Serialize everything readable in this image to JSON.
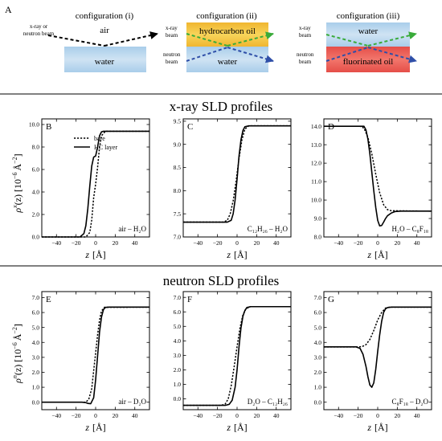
{
  "figure_label": "A",
  "configurations": [
    {
      "title": "configuration (i)",
      "top_label": "air",
      "bottom_label": "water",
      "beam_labels": [
        "x-ray or",
        "neutron beam"
      ]
    },
    {
      "title": "configuration (ii)",
      "top_label": "hydrocarbon oil",
      "bottom_label": "water",
      "beam_labels": [
        "x-ray",
        "beam",
        "neutron",
        "beam"
      ]
    },
    {
      "title": "configuration (iii)",
      "top_label": "water",
      "bottom_label": "fluorinated oil",
      "beam_labels": [
        "x-ray",
        "beam",
        "neutron",
        "beam"
      ]
    }
  ],
  "sections": {
    "xray": "x-ray SLD profiles",
    "neutron": "neutron SLD profiles"
  },
  "axis_text": {
    "xlabel_z": "z",
    "xlabel_unit": "[Å]",
    "ylabel_x_rho": "ρ",
    "ylabel_x_sup": "x",
    "ylabel_n_rho": "ρ",
    "ylabel_n_sup": "n",
    "ylabel_rest": "(z) [10",
    "ylabel_exp": "−6",
    "ylabel_unit": "Å",
    "ylabel_unit_exp": "−2",
    "ylabel_close": "]"
  },
  "legend": [
    "bare",
    "HC layer"
  ],
  "colors": {
    "water": "#a9cdea",
    "hydrocarbon_oil": "#f0b630",
    "fluorinated_oil": "#e54e48",
    "xray_beam": "#3aab3a",
    "neutron_beam": "#2f4fa8",
    "config_i_beam": "#000000"
  },
  "chart_data": [
    {
      "id": "B",
      "type": "line",
      "section": "xray",
      "annotation": "air – H₂O",
      "xlim": [
        -55,
        55
      ],
      "xticks": [
        -40,
        -20,
        0,
        20,
        40
      ],
      "ylim": [
        0,
        10.5
      ],
      "yticks": [
        0.0,
        2.0,
        4.0,
        6.0,
        8.0,
        10.0
      ],
      "ytick_labels": [
        "0.0",
        "2.0",
        "4.0",
        "6.0",
        "8.0",
        "10.0"
      ],
      "series": [
        {
          "name": "bare",
          "x": [
            -55,
            -10,
            -6,
            -4,
            -2,
            0,
            2,
            4,
            6,
            10,
            55
          ],
          "y": [
            0.0,
            0.0,
            0.4,
            1.5,
            3.5,
            4.7,
            6.2,
            8.0,
            9.0,
            9.4,
            9.4
          ]
        },
        {
          "name": "HC layer",
          "x": [
            -55,
            -16,
            -12,
            -10,
            -8,
            -6,
            -4,
            -2,
            0,
            2,
            4,
            6,
            8,
            55
          ],
          "y": [
            0.0,
            0.0,
            0.3,
            1.0,
            2.5,
            4.5,
            6.3,
            7.1,
            7.2,
            8.0,
            9.0,
            9.35,
            9.4,
            9.4
          ]
        }
      ]
    },
    {
      "id": "C",
      "type": "line",
      "section": "xray",
      "annotation": "C₁₂H₂₆ – H₂O",
      "xlim": [
        -55,
        55
      ],
      "xticks": [
        -40,
        -20,
        0,
        20,
        40
      ],
      "ylim": [
        7.0,
        9.55
      ],
      "yticks": [
        7.0,
        7.5,
        8.0,
        8.5,
        9.0,
        9.5
      ],
      "ytick_labels": [
        "7.0",
        "7.5",
        "8.0",
        "8.5",
        "9.0",
        "9.5"
      ],
      "series": [
        {
          "name": "bare",
          "x": [
            -55,
            -14,
            -10,
            -7,
            -4,
            -1,
            2,
            5,
            8,
            12,
            55
          ],
          "y": [
            7.32,
            7.32,
            7.36,
            7.5,
            7.78,
            8.2,
            8.7,
            9.1,
            9.33,
            9.4,
            9.4
          ]
        },
        {
          "name": "HC layer",
          "x": [
            -55,
            -10,
            -6,
            -4,
            -2,
            0,
            2,
            4,
            6,
            8,
            12,
            55
          ],
          "y": [
            7.32,
            7.32,
            7.36,
            7.5,
            7.8,
            8.25,
            8.75,
            9.1,
            9.3,
            9.38,
            9.4,
            9.4
          ]
        }
      ]
    },
    {
      "id": "D",
      "type": "line",
      "section": "xray",
      "annotation": "H₂O – C₈F₁₈",
      "xlim": [
        -55,
        55
      ],
      "xticks": [
        -40,
        -20,
        0,
        20,
        40
      ],
      "ylim": [
        8.0,
        14.4
      ],
      "yticks": [
        8.0,
        9.0,
        10.0,
        11.0,
        12.0,
        13.0,
        14.0
      ],
      "ytick_labels": [
        "8.0",
        "9.0",
        "10.0",
        "11.0",
        "12.0",
        "13.0",
        "14.0"
      ],
      "series": [
        {
          "name": "bare",
          "x": [
            -55,
            -18,
            -14,
            -10,
            -6,
            -2,
            2,
            6,
            10,
            14,
            55
          ],
          "y": [
            14.0,
            14.0,
            13.9,
            13.4,
            12.5,
            11.4,
            10.4,
            9.75,
            9.48,
            9.42,
            9.4
          ]
        },
        {
          "name": "HC layer",
          "x": [
            -55,
            -14,
            -12,
            -10,
            -8,
            -6,
            -4,
            -2,
            0,
            2,
            4,
            6,
            8,
            10,
            14,
            18,
            24,
            55
          ],
          "y": [
            14.0,
            14.0,
            13.8,
            13.3,
            12.5,
            11.5,
            10.5,
            9.6,
            8.9,
            8.6,
            8.62,
            8.8,
            9.0,
            9.15,
            9.3,
            9.38,
            9.4,
            9.4
          ]
        }
      ]
    },
    {
      "id": "E",
      "type": "line",
      "section": "neutron",
      "annotation": "air – D₂O",
      "xlim": [
        -55,
        55
      ],
      "xticks": [
        -40,
        -20,
        0,
        20,
        40
      ],
      "ylim": [
        -0.5,
        7.4
      ],
      "yticks": [
        0.0,
        1.0,
        2.0,
        3.0,
        4.0,
        5.0,
        6.0,
        7.0
      ],
      "ytick_labels": [
        "0.0",
        "1.0",
        "2.0",
        "3.0",
        "4.0",
        "5.0",
        "6.0",
        "7.0"
      ],
      "series": [
        {
          "name": "bare",
          "x": [
            -55,
            -10,
            -7,
            -4,
            -2,
            0,
            2,
            4,
            6,
            9,
            55
          ],
          "y": [
            0.0,
            0.0,
            0.2,
            0.9,
            2.1,
            3.3,
            4.5,
            5.5,
            6.1,
            6.35,
            6.36
          ]
        },
        {
          "name": "HC layer",
          "x": [
            -55,
            -14,
            -10,
            -8,
            -5,
            -2,
            0,
            2,
            4,
            6,
            8,
            10,
            14,
            55
          ],
          "y": [
            0.0,
            0.0,
            -0.03,
            -0.08,
            -0.1,
            0.3,
            1.5,
            3.1,
            4.7,
            5.7,
            6.2,
            6.34,
            6.36,
            6.36
          ]
        }
      ]
    },
    {
      "id": "F",
      "type": "line",
      "section": "neutron",
      "annotation": "D₂O – C₁₂H₂₆",
      "xlim": [
        -55,
        55
      ],
      "xticks": [
        -40,
        -20,
        0,
        20,
        40
      ],
      "ylim": [
        -0.75,
        7.4
      ],
      "yticks": [
        0.0,
        1.0,
        2.0,
        3.0,
        4.0,
        5.0,
        6.0,
        7.0
      ],
      "ytick_labels": [
        "0.0",
        "1.0",
        "2.0",
        "3.0",
        "4.0",
        "5.0",
        "6.0",
        "7.0"
      ],
      "series": [
        {
          "name": "bare",
          "x": [
            -55,
            -16,
            -12,
            -9,
            -6,
            -3,
            0,
            3,
            6,
            9,
            13,
            55
          ],
          "y": [
            -0.45,
            -0.45,
            -0.35,
            0.0,
            0.9,
            2.2,
            3.6,
            4.9,
            5.8,
            6.2,
            6.36,
            6.36
          ]
        },
        {
          "name": "HC layer",
          "x": [
            -55,
            -12,
            -8,
            -5,
            -2,
            0,
            2,
            4,
            6,
            8,
            10,
            14,
            55
          ],
          "y": [
            -0.45,
            -0.45,
            -0.38,
            -0.1,
            0.8,
            2.0,
            3.6,
            4.9,
            5.7,
            6.1,
            6.3,
            6.36,
            6.36
          ]
        }
      ]
    },
    {
      "id": "G",
      "type": "line",
      "section": "neutron",
      "annotation": "C₈F₁₈ – D₂O",
      "xlim": [
        -55,
        55
      ],
      "xticks": [
        -40,
        -20,
        0,
        20,
        40
      ],
      "ylim": [
        -0.5,
        7.4
      ],
      "yticks": [
        0.0,
        1.0,
        2.0,
        3.0,
        4.0,
        5.0,
        6.0,
        7.0
      ],
      "ytick_labels": [
        "0.0",
        "1.0",
        "2.0",
        "3.0",
        "4.0",
        "5.0",
        "6.0",
        "7.0"
      ],
      "series": [
        {
          "name": "bare",
          "x": [
            -55,
            -20,
            -16,
            -12,
            -8,
            -4,
            0,
            4,
            8,
            12,
            55
          ],
          "y": [
            3.7,
            3.7,
            3.72,
            3.85,
            4.2,
            4.8,
            5.5,
            6.0,
            6.3,
            6.36,
            6.36
          ]
        },
        {
          "name": "HC layer",
          "x": [
            -55,
            -22,
            -18,
            -15,
            -12,
            -10,
            -8,
            -6,
            -4,
            -2,
            0,
            2,
            4,
            6,
            8,
            10,
            14,
            55
          ],
          "y": [
            3.7,
            3.7,
            3.6,
            3.2,
            2.4,
            1.7,
            1.15,
            1.0,
            1.3,
            2.2,
            3.4,
            4.5,
            5.4,
            6.0,
            6.25,
            6.33,
            6.36,
            6.36
          ]
        }
      ]
    }
  ]
}
